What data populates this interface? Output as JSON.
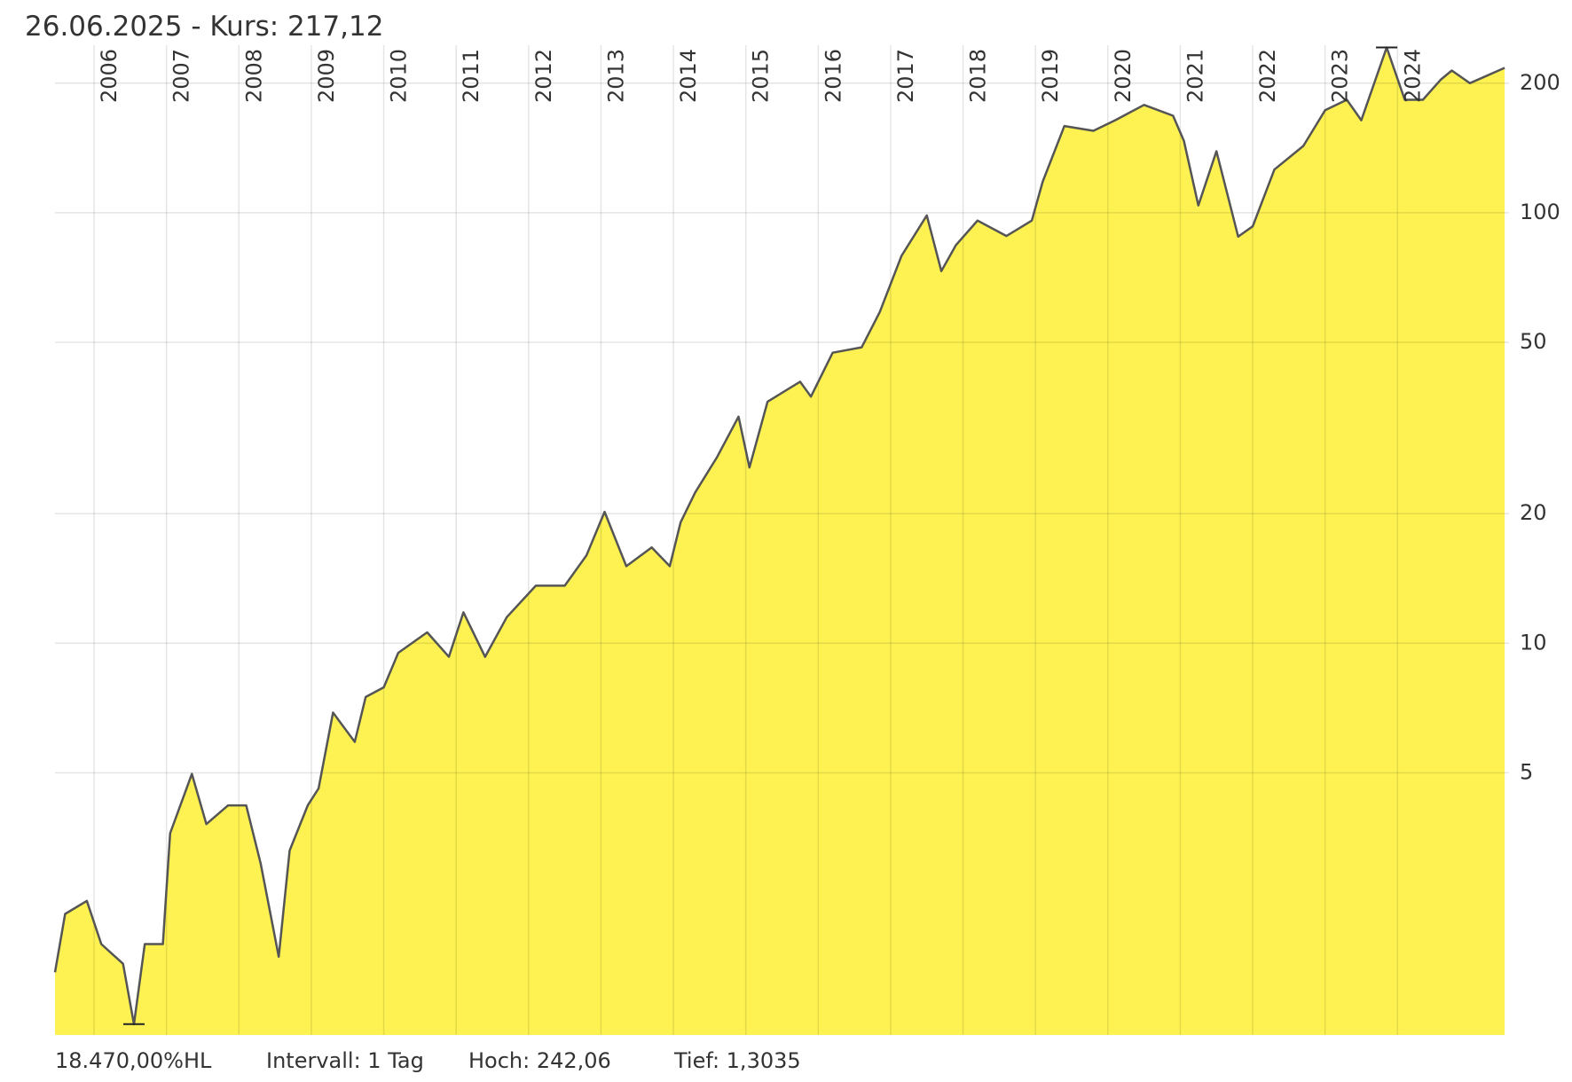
{
  "chart_data": {
    "type": "area",
    "title": "26.06.2025  -  Kurs: 217,12",
    "footer": [
      "18.470,00%HL",
      "Intervall: 1 Tag",
      "Hoch:  242,06",
      "Tief: 1,3035"
    ],
    "log_scale": true,
    "grid": true,
    "fill_color": "#fdf251",
    "line_color": "#555555",
    "xlim": [
      2005.46,
      2025.54
    ],
    "xticks": [
      2006,
      2007,
      2008,
      2009,
      2010,
      2011,
      2012,
      2013,
      2014,
      2015,
      2016,
      2017,
      2018,
      2019,
      2020,
      2021,
      2022,
      2023,
      2024
    ],
    "ylim": [
      1.23,
      245
    ],
    "yticks": [
      5,
      10,
      20,
      50,
      100,
      200
    ],
    "x": [
      2005.46,
      2005.6,
      2005.9,
      2006.1,
      2006.4,
      2006.55,
      2006.7,
      2006.95,
      2007.05,
      2007.35,
      2007.55,
      2007.85,
      2008.1,
      2008.3,
      2008.55,
      2008.7,
      2008.95,
      2009.1,
      2009.3,
      2009.6,
      2009.75,
      2010.0,
      2010.2,
      2010.6,
      2010.9,
      2011.1,
      2011.4,
      2011.7,
      2012.1,
      2012.5,
      2012.8,
      2013.05,
      2013.35,
      2013.7,
      2013.95,
      2014.1,
      2014.3,
      2014.6,
      2014.9,
      2015.05,
      2015.3,
      2015.75,
      2015.9,
      2016.2,
      2016.6,
      2016.85,
      2017.15,
      2017.5,
      2017.7,
      2017.9,
      2018.2,
      2018.6,
      2018.95,
      2019.1,
      2019.4,
      2019.8,
      2020.1,
      2020.5,
      2020.9,
      2021.05,
      2021.25,
      2021.5,
      2021.8,
      2022.0,
      2022.3,
      2022.7,
      2023.0,
      2023.3,
      2023.5,
      2023.85,
      2024.1,
      2024.35,
      2024.6,
      2024.75,
      2025.0,
      2025.48
    ],
    "values": [
      1.72,
      2.35,
      2.52,
      2.0,
      1.8,
      1.3035,
      2.0,
      2.0,
      3.62,
      4.97,
      3.8,
      4.2,
      4.2,
      3.08,
      1.87,
      3.3,
      4.2,
      4.6,
      6.9,
      5.9,
      7.5,
      7.9,
      9.5,
      10.6,
      9.3,
      11.8,
      9.3,
      11.5,
      13.6,
      13.6,
      16.0,
      20.2,
      15.1,
      16.7,
      15.1,
      19.1,
      22.4,
      27.0,
      33.6,
      25.6,
      36.4,
      40.5,
      37.4,
      47.3,
      48.7,
      58.8,
      79.4,
      98.6,
      73.2,
      84.0,
      95.9,
      88.3,
      95.9,
      118,
      159,
      155,
      164,
      178,
      168,
      147,
      104,
      139,
      88,
      93,
      126,
      143,
      173,
      183,
      164,
      242.06,
      183,
      183,
      204,
      214,
      200,
      217.12
    ]
  }
}
